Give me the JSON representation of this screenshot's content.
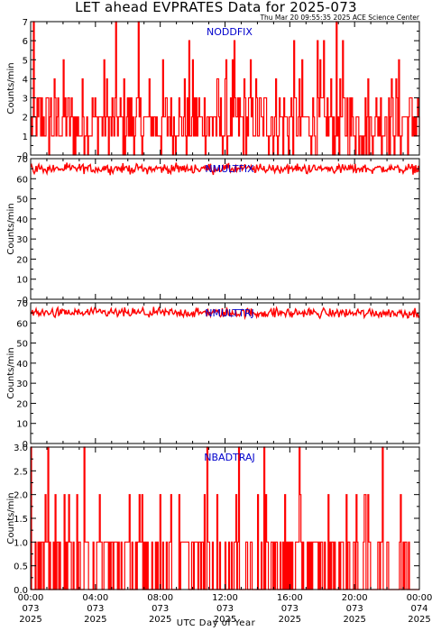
{
  "title": "LET ahead EVPRATES Data for 2025-073",
  "timestamp": "Thu Mar 20 09:55:35 2025 ACE Science Center",
  "xaxis_title": "UTC Day of Year",
  "colors": {
    "data": "#ff0000",
    "panel_title": "#0000cc",
    "axes": "#000000"
  },
  "chart_data": [
    {
      "type": "line",
      "title": "NODDFIX",
      "ylabel": "Counts/min",
      "ylim": [
        0,
        7
      ],
      "yticks": [
        "0",
        "1",
        "2",
        "3",
        "4",
        "5",
        "6",
        "7"
      ],
      "summary": {
        "baseline": 2,
        "typical_range": [
          1,
          3
        ],
        "min": 0,
        "max": 7
      }
    },
    {
      "type": "line",
      "title": "NMULTFIX",
      "ylabel": "Counts/min",
      "ylim": [
        0,
        70
      ],
      "yticks": [
        "0",
        "10",
        "20",
        "30",
        "40",
        "50",
        "60",
        "70"
      ],
      "summary": {
        "baseline": 65,
        "typical_range": [
          63,
          67
        ],
        "min": 61,
        "max": 68
      }
    },
    {
      "type": "line",
      "title": "NMULTTRJ",
      "ylabel": "Counts/min",
      "ylim": [
        0,
        70
      ],
      "yticks": [
        "0",
        "10",
        "20",
        "30",
        "40",
        "50",
        "60",
        "70"
      ],
      "summary": {
        "baseline": 65,
        "typical_range": [
          63,
          67
        ],
        "min": 61,
        "max": 69
      }
    },
    {
      "type": "line",
      "title": "NBADTRAJ",
      "ylabel": "Counts/min",
      "ylim": [
        0,
        3
      ],
      "yticks": [
        "0.0",
        "0.5",
        "1.0",
        "1.5",
        "2.0",
        "2.5",
        "3.0"
      ],
      "summary": {
        "baseline": 1,
        "typical_range": [
          0,
          1
        ],
        "min": 0,
        "max": 3
      }
    }
  ],
  "x_axis": {
    "range_hours": [
      0,
      24
    ],
    "ticks": [
      {
        "hour": 0,
        "time": "00:00",
        "doy": "073",
        "year": "2025"
      },
      {
        "hour": 4,
        "time": "04:00",
        "doy": "073",
        "year": "2025"
      },
      {
        "hour": 8,
        "time": "08:00",
        "doy": "073",
        "year": "2025"
      },
      {
        "hour": 12,
        "time": "12:00",
        "doy": "073",
        "year": "2025"
      },
      {
        "hour": 16,
        "time": "16:00",
        "doy": "073",
        "year": "2025"
      },
      {
        "hour": 20,
        "time": "20:00",
        "doy": "073",
        "year": "2025"
      },
      {
        "hour": 24,
        "time": "00:00",
        "doy": "074",
        "year": "2025"
      }
    ]
  }
}
